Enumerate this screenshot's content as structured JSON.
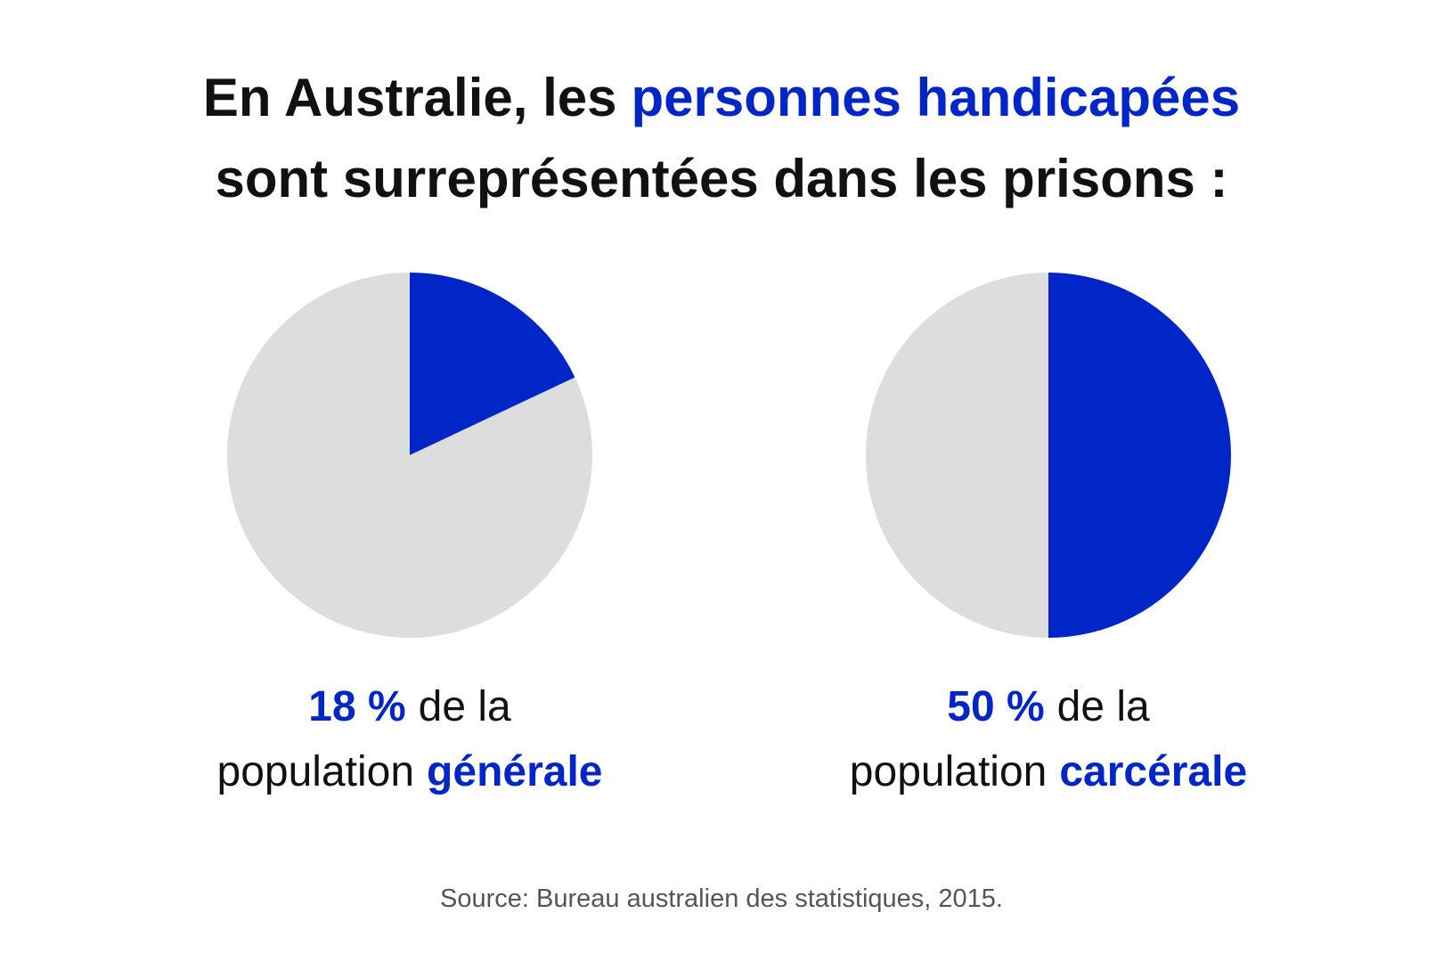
{
  "title": [
    "En Australie, les",
    "personnes handicapées",
    "sont surreprésentées dans les prisons :"
  ],
  "source": "Source: Bureau australien des statistiques, 2015.",
  "chart_data": [
    {
      "type": "pie",
      "values": [
        18,
        82
      ],
      "value_labels": [
        "18 %",
        null
      ],
      "colors": [
        "#0026c8",
        "#dddddd"
      ],
      "caption": [
        "de la",
        "population",
        "générale"
      ]
    },
    {
      "type": "pie",
      "values": [
        50,
        50
      ],
      "value_labels": [
        "50 %",
        null
      ],
      "colors": [
        "#0026c8",
        "#dddddd"
      ],
      "caption": [
        "de la",
        "population",
        "carcérale"
      ]
    }
  ]
}
